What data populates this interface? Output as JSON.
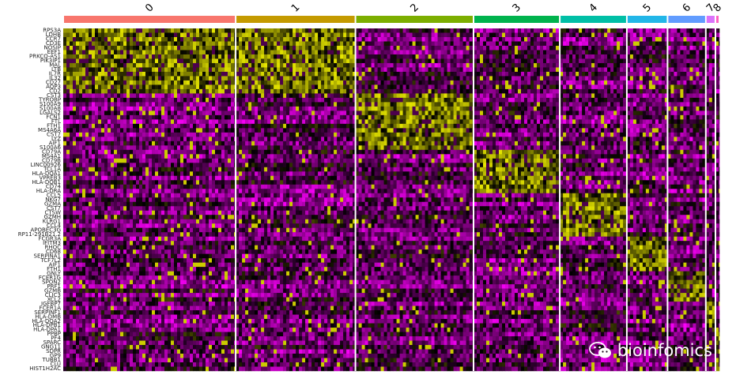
{
  "chart_data": {
    "type": "heatmap",
    "title": "",
    "xlabel": "",
    "ylabel": "",
    "legend": "none",
    "palette": {
      "low": "#ff00ff",
      "mid": "#000000",
      "high": "#ffff00",
      "separator": "#ffffff"
    },
    "clusters": [
      {
        "label": "0",
        "cells": 216,
        "color": "#f8766d"
      },
      {
        "label": "1",
        "cells": 150,
        "color": "#c49a00"
      },
      {
        "label": "2",
        "cells": 148,
        "color": "#7cae00"
      },
      {
        "label": "3",
        "cells": 108,
        "color": "#00b34d"
      },
      {
        "label": "4",
        "cells": 84,
        "color": "#00bfa6"
      },
      {
        "label": "5",
        "cells": 51,
        "color": "#22b6e8"
      },
      {
        "label": "6",
        "cells": 48,
        "color": "#619cff"
      },
      {
        "label": "7",
        "cells": 12,
        "color": "#db72fb"
      },
      {
        "label": "8",
        "cells": 5,
        "color": "#ff61c3"
      }
    ],
    "gene_blocks": [
      {
        "marker_for": [
          "0",
          "1"
        ],
        "genes": [
          "RPS3A",
          "LDHB",
          "CCR7",
          "CD3E",
          "NOSIP",
          "EEF1",
          "PRKCQ-AS1",
          "PIK3IP1",
          "MAL",
          "LTB",
          "IL7R",
          "IL32",
          "CD27",
          "AQP3",
          "CD2"
        ]
      },
      {
        "marker_for": [
          "2"
        ],
        "genes": [
          "CST3",
          "TYROBP",
          "S100A9",
          "S100A8",
          "LGALS2",
          "FCN1",
          "FTL",
          "FTH1",
          "MS4A6A",
          "CST7",
          "LYZ",
          "AIF1",
          "S100A6"
        ]
      },
      {
        "marker_for": [
          "3"
        ],
        "genes": [
          "CD79A",
          "MS4A1",
          "CD79B",
          "LINC00926",
          "TCL1A",
          "HLA-DQA1",
          "VPREB3",
          "HLA-DQB1",
          "CD74",
          "HLA-DRA"
        ]
      },
      {
        "marker_for": [
          "4"
        ],
        "genes": [
          "CCL5",
          "NKG7",
          "GZMA",
          "CST7",
          "CTSW",
          "GZMH",
          "KLRG1",
          "CCL4",
          "APOBEC3G",
          "RP11-291B21.2"
        ]
      },
      {
        "marker_for": [
          "5"
        ],
        "genes": [
          "FCGR3A",
          "IFITM3",
          "RHOC",
          "CD68",
          "SERPINA1",
          "TCF7L2",
          "AIF1",
          "FTH1"
        ]
      },
      {
        "marker_for": [
          "6"
        ],
        "genes": [
          "GNLY",
          "FCER1G",
          "SPON2",
          "PRF1",
          "GZMB",
          "CLIC3",
          "XCL2"
        ]
      },
      {
        "marker_for": [
          "7"
        ],
        "genes": [
          "IGFBP7",
          "FCER1A",
          "SERPINF1",
          "HLA-DMB",
          "HLA-DQA2",
          "HLA-DPB1",
          "HLA-DPA1"
        ]
      },
      {
        "marker_for": [
          "8"
        ],
        "genes": [
          "PPBP",
          "PF4",
          "SPARC",
          "GNG11",
          "SDPR",
          "GP9",
          "TUBB1",
          "CLU",
          "HIST1H2AC"
        ]
      }
    ]
  },
  "watermark": {
    "text": "bioinfomics",
    "icon": "wechat-icon"
  }
}
